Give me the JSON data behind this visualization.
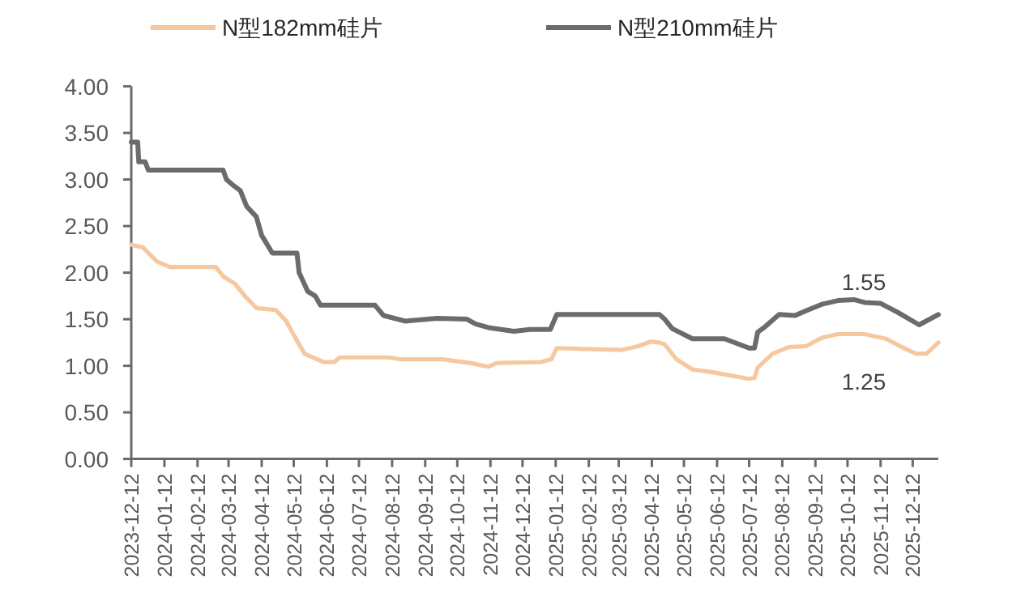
{
  "chart_data": {
    "type": "line",
    "legend": "top",
    "grid": false,
    "line_style": "solid",
    "xlim": [
      "2023-12-12",
      "2026-01-05"
    ],
    "xticks": [
      "2023-12-12",
      "2024-01-12",
      "2024-02-12",
      "2024-03-12",
      "2024-04-12",
      "2024-05-12",
      "2024-06-12",
      "2024-07-12",
      "2024-08-12",
      "2024-09-12",
      "2024-10-12",
      "2024-11-12",
      "2024-12-12",
      "2025-01-12",
      "2025-02-12",
      "2025-03-12",
      "2025-04-12",
      "2025-05-12",
      "2025-06-12",
      "2025-07-12",
      "2025-08-12",
      "2025-09-12",
      "2025-10-12",
      "2025-11-12",
      "2025-12-12"
    ],
    "ylim": [
      0,
      4
    ],
    "yticks": [
      {
        "value": 0,
        "label": "0.00"
      },
      {
        "value": 0.5,
        "label": "0.50"
      },
      {
        "value": 1,
        "label": "1.00"
      },
      {
        "value": 1.5,
        "label": "1.50"
      },
      {
        "value": 2,
        "label": "2.00"
      },
      {
        "value": 2.5,
        "label": "2.50"
      },
      {
        "value": 3,
        "label": "3.00"
      },
      {
        "value": 3.5,
        "label": "3.50"
      },
      {
        "value": 4,
        "label": "4.00"
      }
    ],
    "series": [
      {
        "name": "N型182mm硅片",
        "color": "#f5c8a0",
        "x": [
          "2023-12-12",
          "2023-12-23",
          "2024-01-05",
          "2024-01-17",
          "2024-02-29",
          "2024-03-07",
          "2024-03-18",
          "2024-03-28",
          "2024-04-07",
          "2024-04-25",
          "2024-05-05",
          "2024-05-12",
          "2024-05-22",
          "2024-05-30",
          "2024-06-09",
          "2024-06-19",
          "2024-06-24",
          "2024-08-09",
          "2024-08-19",
          "2024-09-28",
          "2024-10-24",
          "2024-11-10",
          "2024-11-18",
          "2024-12-29",
          "2025-01-08",
          "2025-01-13",
          "2025-02-08",
          "2025-03-15",
          "2025-03-30",
          "2025-04-11",
          "2025-04-19",
          "2025-04-24",
          "2025-05-05",
          "2025-05-20",
          "2025-06-08",
          "2025-07-12",
          "2025-07-17",
          "2025-07-20",
          "2025-08-03",
          "2025-08-18",
          "2025-09-03",
          "2025-09-18",
          "2025-10-03",
          "2025-10-28",
          "2025-11-17",
          "2025-12-02",
          "2025-12-15",
          "2025-12-25",
          "2026-01-05"
        ],
        "values": [
          2.3,
          2.27,
          2.12,
          2.06,
          2.06,
          1.96,
          1.88,
          1.74,
          1.62,
          1.6,
          1.48,
          1.33,
          1.13,
          1.09,
          1.04,
          1.04,
          1.09,
          1.09,
          1.07,
          1.07,
          1.03,
          0.99,
          1.03,
          1.04,
          1.07,
          1.19,
          1.18,
          1.17,
          1.21,
          1.26,
          1.25,
          1.23,
          1.07,
          0.96,
          0.93,
          0.86,
          0.87,
          0.98,
          1.13,
          1.2,
          1.21,
          1.3,
          1.34,
          1.34,
          1.29,
          1.2,
          1.13,
          1.13,
          1.25
        ]
      },
      {
        "name": "N型210mm硅片",
        "color": "#6b6b6b",
        "x": [
          "2023-12-12",
          "2023-12-18",
          "2023-12-19",
          "2023-12-25",
          "2023-12-28",
          "2024-03-07",
          "2024-03-10",
          "2024-03-15",
          "2024-03-23",
          "2024-03-29",
          "2024-04-07",
          "2024-04-12",
          "2024-04-22",
          "2024-05-15",
          "2024-05-17",
          "2024-05-25",
          "2024-06-01",
          "2024-06-06",
          "2024-07-27",
          "2024-08-04",
          "2024-08-24",
          "2024-09-23",
          "2024-10-21",
          "2024-10-29",
          "2024-11-10",
          "2024-12-04",
          "2024-12-19",
          "2025-01-07",
          "2025-01-13",
          "2025-04-19",
          "2025-04-24",
          "2025-05-01",
          "2025-05-20",
          "2025-06-19",
          "2025-07-12",
          "2025-07-17",
          "2025-07-20",
          "2025-07-27",
          "2025-08-09",
          "2025-08-24",
          "2025-09-03",
          "2025-09-18",
          "2025-10-03",
          "2025-10-18",
          "2025-10-28",
          "2025-11-12",
          "2025-11-27",
          "2025-12-18",
          "2026-01-05"
        ],
        "values": [
          3.4,
          3.4,
          3.19,
          3.19,
          3.1,
          3.1,
          3.0,
          2.95,
          2.88,
          2.71,
          2.6,
          2.4,
          2.21,
          2.21,
          2.0,
          1.8,
          1.75,
          1.65,
          1.65,
          1.54,
          1.48,
          1.51,
          1.5,
          1.45,
          1.41,
          1.37,
          1.39,
          1.39,
          1.55,
          1.55,
          1.5,
          1.4,
          1.29,
          1.29,
          1.19,
          1.19,
          1.36,
          1.42,
          1.55,
          1.54,
          1.59,
          1.66,
          1.7,
          1.71,
          1.68,
          1.67,
          1.58,
          1.44,
          1.55
        ]
      }
    ],
    "annotations": [
      {
        "text": "1.55",
        "x": "2026-01-05",
        "y": 1.55
      },
      {
        "text": "1.25",
        "x": "2026-01-05",
        "y": 1.25
      }
    ]
  }
}
